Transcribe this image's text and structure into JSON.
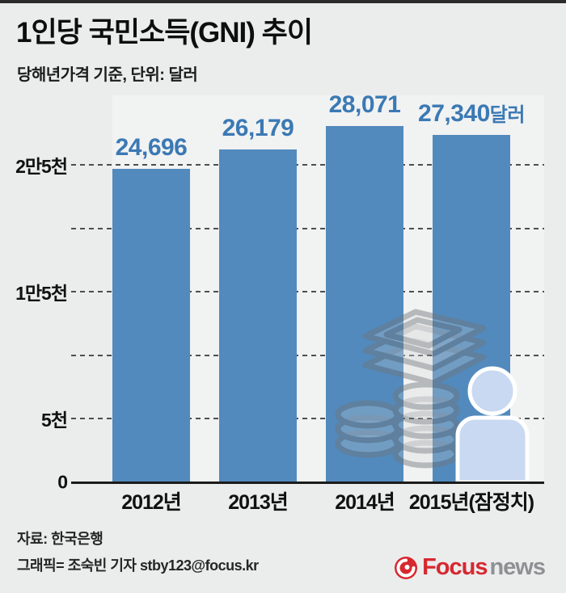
{
  "header": {
    "title": "1인당 국민소득(GNI) 추이",
    "subtitle": "당해년가격 기준, 단위: 달러"
  },
  "chart_data": {
    "type": "bar",
    "title": "1인당 국민소득(GNI) 추이",
    "subtitle": "당해년가격 기준, 단위: 달러",
    "unit": "달러",
    "categories": [
      "2012년",
      "2013년",
      "2014년",
      "2015년(잠정치)"
    ],
    "values": [
      24696,
      26179,
      28071,
      27340
    ],
    "value_labels": [
      "24,696",
      "26,179",
      "28,071",
      "27,340"
    ],
    "value_suffixes": [
      "",
      "",
      "",
      "달러"
    ],
    "y_ticks": [
      {
        "value": 25000,
        "label": "2만5천"
      },
      {
        "value": 20000,
        "label": ""
      },
      {
        "value": 15000,
        "label": "1만5천"
      },
      {
        "value": 10000,
        "label": ""
      },
      {
        "value": 5000,
        "label": "5천"
      },
      {
        "value": 0,
        "label": "0"
      }
    ],
    "ylim": [
      0,
      29000
    ],
    "grid": true,
    "legend": false
  },
  "colors": {
    "bar": "#528abd",
    "value_label": "#3b79b4",
    "background": "#ebecec",
    "axis": "#1b1b1b",
    "person_icon_fill": "#c9d9f1",
    "watermark_gray": "#777d81",
    "logo_red": "#d7282f",
    "logo_gray": "#8e9194"
  },
  "watermark": {
    "icons": [
      "money-stacks-icon",
      "person-icon"
    ]
  },
  "footer": {
    "source": "자료: 한국은행",
    "credit": "그래픽= 조숙빈 기자 stby123@focus.kr",
    "logo": {
      "focus": "Focus",
      "news": "news"
    }
  }
}
